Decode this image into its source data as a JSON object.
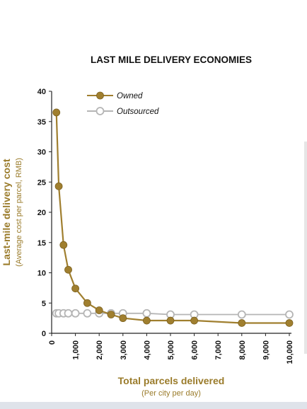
{
  "chart_data": {
    "type": "line",
    "title": "LAST MILE DELIVERY ECONOMIES",
    "ylabel": "Last-mile delivery cost",
    "ylabel_sub": "(Average cost per parcel, RMB)",
    "xlabel": "Total parcels delivered",
    "xlabel_sub": "(Per city per day)",
    "xlim": [
      0,
      10000
    ],
    "ylim": [
      0,
      40
    ],
    "x_ticks": [
      0,
      1000,
      2000,
      3000,
      4000,
      5000,
      6000,
      7000,
      8000,
      9000,
      10000
    ],
    "x_tick_labels": [
      "0",
      "1,000",
      "2,000",
      "3,000",
      "4,000",
      "5,000",
      "6,000",
      "7,000",
      "8,000",
      "9,000",
      "10,000"
    ],
    "y_ticks": [
      0,
      5,
      10,
      15,
      20,
      25,
      30,
      35,
      40
    ],
    "y_tick_labels": [
      "0",
      "5",
      "10",
      "15",
      "20",
      "25",
      "30",
      "35",
      "40"
    ],
    "grid": false,
    "legend_position": "top-left",
    "series": [
      {
        "name": "Owned",
        "color": "#a07f2f",
        "marker": "filled-circle",
        "x": [
          200,
          300,
          500,
          700,
          1000,
          1500,
          2000,
          2500,
          3000,
          4000,
          5000,
          6000,
          8000,
          10000
        ],
        "y": [
          36.5,
          24.3,
          14.6,
          10.5,
          7.4,
          5.0,
          3.8,
          3.1,
          2.5,
          2.1,
          2.1,
          2.1,
          1.7,
          1.7
        ]
      },
      {
        "name": "Outsourced",
        "color": "#b5b5b5",
        "marker": "open-circle",
        "x": [
          200,
          300,
          500,
          700,
          1000,
          1500,
          2000,
          2500,
          3000,
          4000,
          5000,
          6000,
          8000,
          10000
        ],
        "y": [
          3.3,
          3.3,
          3.3,
          3.3,
          3.3,
          3.3,
          3.3,
          3.3,
          3.3,
          3.3,
          3.1,
          3.1,
          3.1,
          3.1
        ]
      }
    ]
  }
}
